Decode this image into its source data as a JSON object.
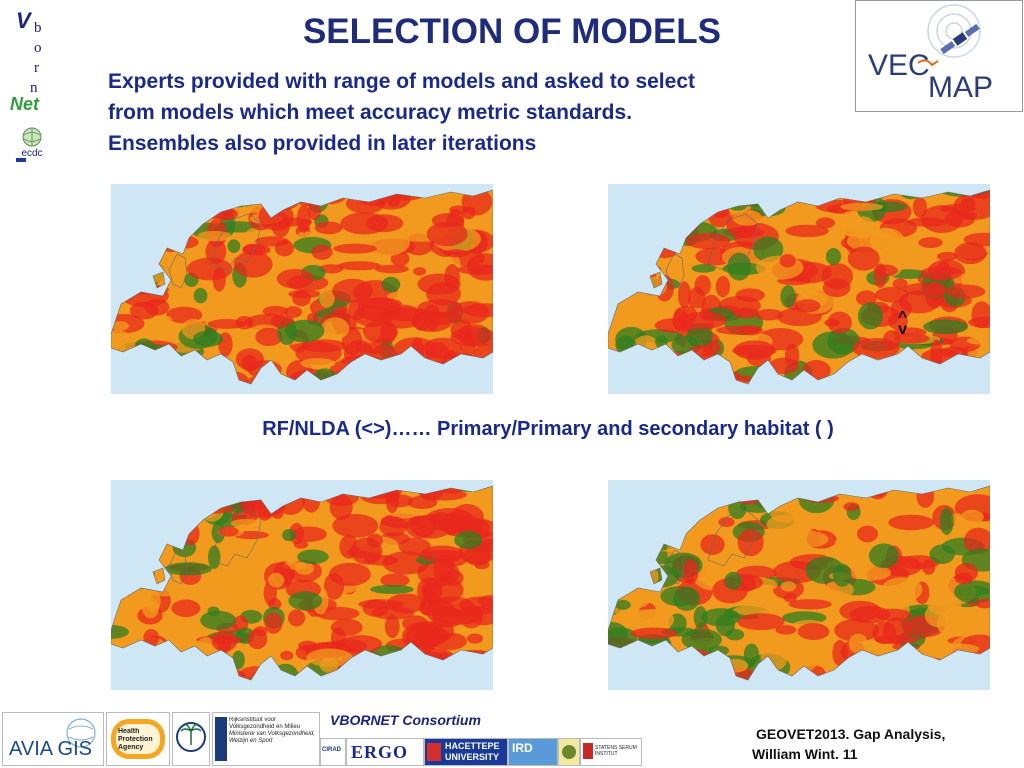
{
  "header": {
    "title": "SELECTION OF MODELS",
    "intro_lines": [
      "Experts provided with range of models and asked to select",
      "from models which meet accuracy metric standards.",
      "Ensembles also provided in later iterations"
    ]
  },
  "vbornet_logo": {
    "v": "V",
    "letters": [
      "b",
      "o",
      "r",
      "n"
    ],
    "net": "Net",
    "ecdc": "ecdc"
  },
  "vecmap_logo": {
    "line1": "VEC",
    "line2": "MAP"
  },
  "maps": {
    "caption": "RF/NLDA (<>)…… Primary/Primary and secondary habitat  (    )",
    "arrow_up": "^",
    "arrow_down": "v"
  },
  "footer": {
    "consortium": "VBORNET Consortium",
    "citation_line1": "GEOVET2013. Gap Analysis,",
    "citation_line2": "William Wint.     11",
    "logos": {
      "avia": "AVIA GIS",
      "hpa": "Health Protection Agency",
      "rivm": "Rijksinstituut voor Volksgezondheid en Milieu",
      "rivm_sub": "Ministerie van Volksgezondheid, Welzijn en Sport",
      "cirad": "CIRAD",
      "ergo": "ERGO",
      "hacettepe_1": "HACETTEPE",
      "hacettepe_2": "UNIVERSITY",
      "ird": "IRD",
      "ssi": "STATENS SERUM INSTITUT"
    }
  },
  "colors": {
    "title": "#1f2c7a",
    "text": "#1a2a8a",
    "sea": "#cfe6f5",
    "high": "#e8281c",
    "mid": "#f29a1e",
    "low": "#2f7d1f"
  }
}
